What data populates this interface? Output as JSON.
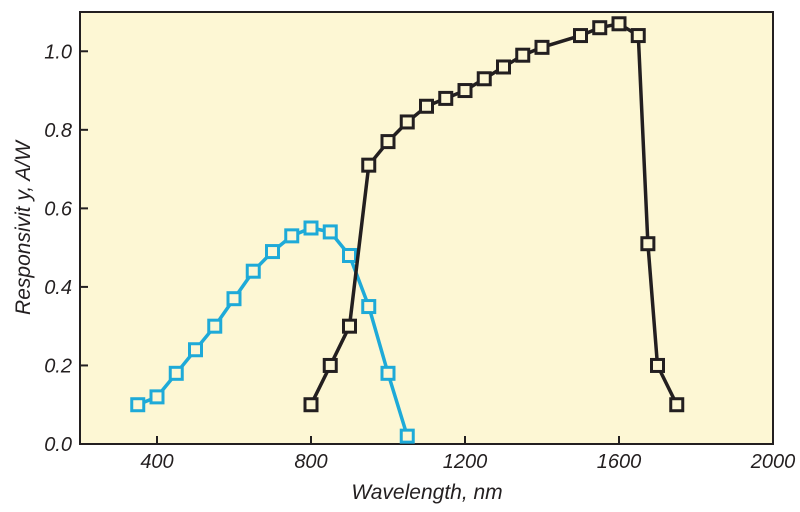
{
  "chart_data": {
    "type": "line",
    "title": "",
    "xlabel": "Wavelength, nm",
    "ylabel": "Responsivit y, A/W",
    "xlim": [
      200,
      2000
    ],
    "ylim": [
      0.0,
      1.1
    ],
    "xticks": [
      400,
      800,
      1200,
      1600,
      2000
    ],
    "xtick_labels": [
      "400",
      "800",
      "1200",
      "1600",
      "2000"
    ],
    "yticks": [
      0.0,
      0.2,
      0.4,
      0.6,
      0.8,
      1.0
    ],
    "ytick_labels": [
      "0.0",
      "0.2",
      "0.4",
      "0.6",
      "0.8",
      "1.0"
    ],
    "grid": false,
    "background": "#fdf7d4",
    "series": [
      {
        "color": "#1eaad8",
        "marker": "square",
        "x": [
          350,
          400,
          450,
          500,
          550,
          600,
          650,
          700,
          750,
          800,
          850,
          900,
          950,
          1000,
          1050
        ],
        "y": [
          0.1,
          0.12,
          0.18,
          0.24,
          0.3,
          0.37,
          0.44,
          0.49,
          0.53,
          0.55,
          0.54,
          0.48,
          0.35,
          0.18,
          0.02
        ]
      },
      {
        "color": "#231f20",
        "marker": "square",
        "x": [
          800,
          850,
          900,
          950,
          1000,
          1050,
          1100,
          1150,
          1200,
          1250,
          1300,
          1350,
          1400,
          1500,
          1550,
          1600,
          1650,
          1675,
          1700,
          1750
        ],
        "y": [
          0.1,
          0.2,
          0.3,
          0.71,
          0.77,
          0.82,
          0.86,
          0.88,
          0.9,
          0.93,
          0.96,
          0.99,
          1.01,
          1.04,
          1.06,
          1.07,
          1.04,
          0.51,
          0.2,
          0.1
        ]
      }
    ]
  }
}
